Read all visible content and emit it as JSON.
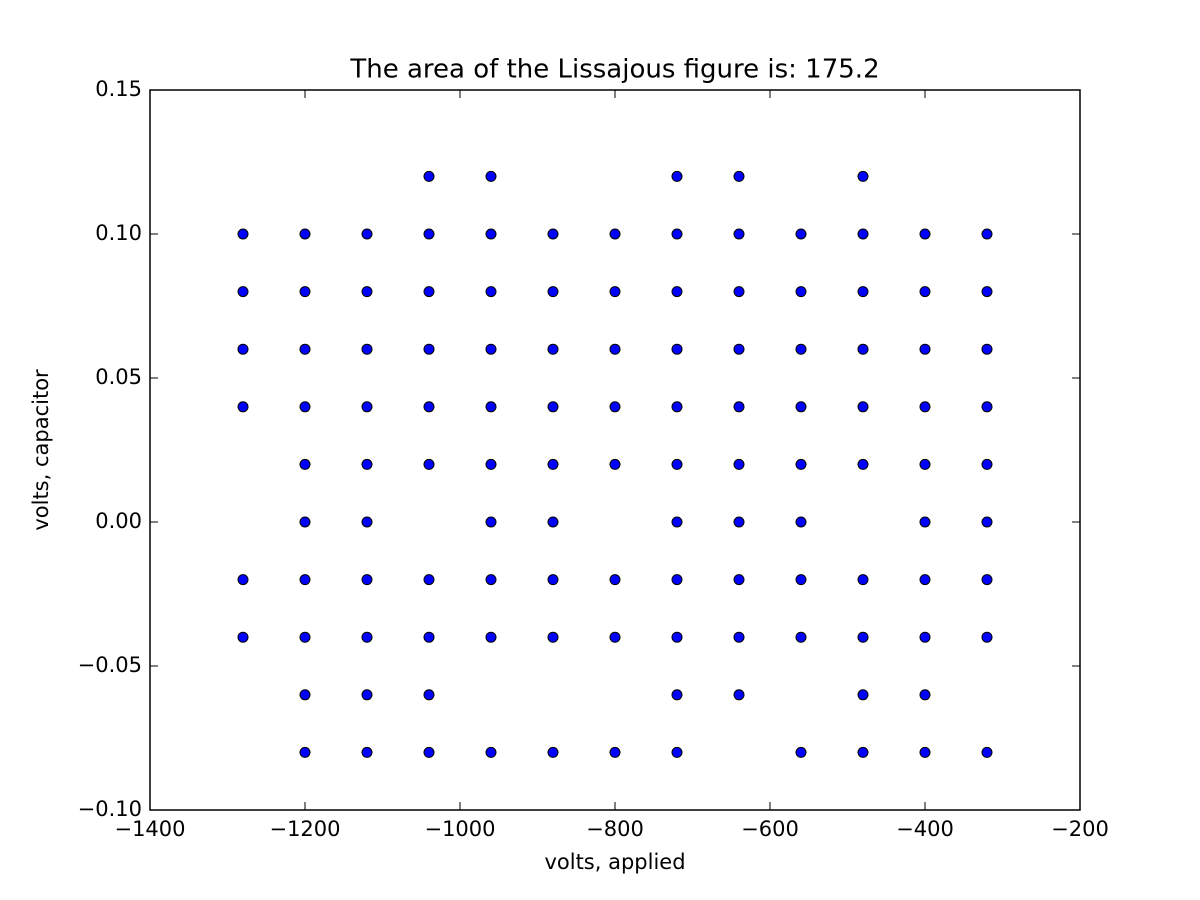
{
  "chart_data": {
    "type": "scatter",
    "title": "The area of the Lissajous figure is: 175.2",
    "x_label": "volts, applied",
    "y_label": "volts, capacitor",
    "color": "#0000ff",
    "x": [
      -1040,
      -960,
      -720,
      -640,
      -480,
      -1280,
      -1200,
      -1120,
      -1040,
      -960,
      -880,
      -800,
      -720,
      -640,
      -560,
      -480,
      -400,
      -320,
      -1280,
      -1200,
      -1120,
      -1040,
      -960,
      -880,
      -800,
      -720,
      -640,
      -560,
      -480,
      -400,
      -320,
      -1280,
      -1200,
      -1120,
      -1040,
      -960,
      -880,
      -800,
      -720,
      -640,
      -560,
      -480,
      -400,
      -320,
      -1280,
      -1200,
      -1120,
      -1040,
      -960,
      -880,
      -800,
      -720,
      -640,
      -560,
      -480,
      -400,
      -320,
      -1200,
      -1120,
      -1040,
      -960,
      -880,
      -800,
      -720,
      -640,
      -560,
      -480,
      -400,
      -320,
      -1200,
      -1120,
      -960,
      -880,
      -720,
      -640,
      -560,
      -400,
      -320,
      -1280,
      -1200,
      -1120,
      -1040,
      -960,
      -880,
      -800,
      -720,
      -640,
      -560,
      -480,
      -400,
      -320,
      -1280,
      -1200,
      -1120,
      -1040,
      -960,
      -880,
      -800,
      -720,
      -640,
      -560,
      -480,
      -400,
      -320,
      -1200,
      -1120,
      -1040,
      -720,
      -640,
      -480,
      -400,
      -1200,
      -1120,
      -1040,
      -960,
      -880,
      -800,
      -720,
      -560,
      -480,
      -400,
      -320
    ],
    "y": [
      0.12,
      0.12,
      0.12,
      0.12,
      0.12,
      0.1,
      0.1,
      0.1,
      0.1,
      0.1,
      0.1,
      0.1,
      0.1,
      0.1,
      0.1,
      0.1,
      0.1,
      0.1,
      0.08,
      0.08,
      0.08,
      0.08,
      0.08,
      0.08,
      0.08,
      0.08,
      0.08,
      0.08,
      0.08,
      0.08,
      0.08,
      0.06,
      0.06,
      0.06,
      0.06,
      0.06,
      0.06,
      0.06,
      0.06,
      0.06,
      0.06,
      0.06,
      0.06,
      0.06,
      0.04,
      0.04,
      0.04,
      0.04,
      0.04,
      0.04,
      0.04,
      0.04,
      0.04,
      0.04,
      0.04,
      0.04,
      0.04,
      0.02,
      0.02,
      0.02,
      0.02,
      0.02,
      0.02,
      0.02,
      0.02,
      0.02,
      0.02,
      0.02,
      0.02,
      0,
      0,
      0,
      0,
      0,
      0,
      0,
      0,
      0,
      -0.02,
      -0.02,
      -0.02,
      -0.02,
      -0.02,
      -0.02,
      -0.02,
      -0.02,
      -0.02,
      -0.02,
      -0.02,
      -0.02,
      -0.02,
      -0.04,
      -0.04,
      -0.04,
      -0.04,
      -0.04,
      -0.04,
      -0.04,
      -0.04,
      -0.04,
      -0.04,
      -0.04,
      -0.04,
      -0.04,
      -0.06,
      -0.06,
      -0.06,
      -0.06,
      -0.06,
      -0.06,
      -0.06,
      -0.08,
      -0.08,
      -0.08,
      -0.08,
      -0.08,
      -0.08,
      -0.08,
      -0.08,
      -0.08,
      -0.08,
      -0.08
    ],
    "xlim": [
      -1400,
      -200
    ],
    "xticks": [
      {
        "value": -1400,
        "label": "−1400"
      },
      {
        "value": -1200,
        "label": "−1200"
      },
      {
        "value": -1000,
        "label": "−1000"
      },
      {
        "value": -800,
        "label": "−800"
      },
      {
        "value": -600,
        "label": "−600"
      },
      {
        "value": -400,
        "label": "−400"
      },
      {
        "value": -200,
        "label": "−200"
      }
    ],
    "ylim": [
      -0.1,
      0.15
    ],
    "yticks": [
      {
        "value": -0.1,
        "label": "−0.10"
      },
      {
        "value": -0.05,
        "label": "−0.05"
      },
      {
        "value": 0,
        "label": "0.00"
      },
      0.05,
      {
        "value": 0.1,
        "label": "0.10"
      },
      0.15
    ]
  }
}
